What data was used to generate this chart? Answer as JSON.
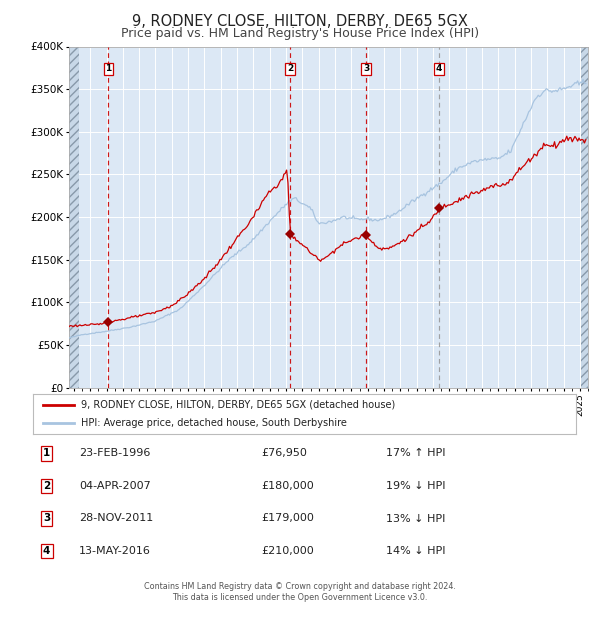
{
  "title": "9, RODNEY CLOSE, HILTON, DERBY, DE65 5GX",
  "subtitle": "Price paid vs. HM Land Registry's House Price Index (HPI)",
  "title_fontsize": 10.5,
  "subtitle_fontsize": 9,
  "ylabel_ticks": [
    "£0",
    "£50K",
    "£100K",
    "£150K",
    "£200K",
    "£250K",
    "£300K",
    "£350K",
    "£400K"
  ],
  "ytick_values": [
    0,
    50000,
    100000,
    150000,
    200000,
    250000,
    300000,
    350000,
    400000
  ],
  "ylim": [
    0,
    400000
  ],
  "xlim_start": 1993.7,
  "xlim_end": 2025.5,
  "xtick_years": [
    1994,
    1995,
    1996,
    1997,
    1998,
    1999,
    2000,
    2001,
    2002,
    2003,
    2004,
    2005,
    2006,
    2007,
    2008,
    2009,
    2010,
    2011,
    2012,
    2013,
    2014,
    2015,
    2016,
    2017,
    2018,
    2019,
    2020,
    2021,
    2022,
    2023,
    2024,
    2025
  ],
  "hpi_line_color": "#a8c4e0",
  "price_line_color": "#cc0000",
  "marker_color": "#990000",
  "bg_color": "#dce8f5",
  "grid_color": "#ffffff",
  "sales": [
    {
      "label": 1,
      "date_decimal": 1996.12,
      "price": 76950,
      "vline_color": "#cc0000"
    },
    {
      "label": 2,
      "date_decimal": 2007.25,
      "price": 180000,
      "vline_color": "#cc0000"
    },
    {
      "label": 3,
      "date_decimal": 2011.91,
      "price": 179000,
      "vline_color": "#cc0000"
    },
    {
      "label": 4,
      "date_decimal": 2016.37,
      "price": 210000,
      "vline_color": "#999999"
    }
  ],
  "table_rows": [
    {
      "num": 1,
      "date": "23-FEB-1996",
      "price": "£76,950",
      "hpi": "17% ↑ HPI"
    },
    {
      "num": 2,
      "date": "04-APR-2007",
      "price": "£180,000",
      "hpi": "19% ↓ HPI"
    },
    {
      "num": 3,
      "date": "28-NOV-2011",
      "price": "£179,000",
      "hpi": "13% ↓ HPI"
    },
    {
      "num": 4,
      "date": "13-MAY-2016",
      "price": "£210,000",
      "hpi": "14% ↓ HPI"
    }
  ],
  "legend_line1": "9, RODNEY CLOSE, HILTON, DERBY, DE65 5GX (detached house)",
  "legend_line2": "HPI: Average price, detached house, South Derbyshire",
  "footer1": "Contains HM Land Registry data © Crown copyright and database right 2024.",
  "footer2": "This data is licensed under the Open Government Licence v3.0.",
  "hpi_anchors": [
    [
      1993.7,
      58000
    ],
    [
      1994.5,
      62000
    ],
    [
      1996.0,
      66000
    ],
    [
      1997.5,
      71000
    ],
    [
      1999.0,
      78000
    ],
    [
      2000.5,
      92000
    ],
    [
      2002.0,
      120000
    ],
    [
      2003.5,
      150000
    ],
    [
      2004.8,
      170000
    ],
    [
      2006.0,
      195000
    ],
    [
      2007.0,
      215000
    ],
    [
      2007.5,
      222000
    ],
    [
      2008.5,
      210000
    ],
    [
      2009.0,
      192000
    ],
    [
      2009.8,
      195000
    ],
    [
      2010.5,
      200000
    ],
    [
      2011.0,
      198000
    ],
    [
      2011.5,
      197000
    ],
    [
      2012.0,
      198000
    ],
    [
      2012.5,
      196000
    ],
    [
      2013.0,
      198000
    ],
    [
      2013.8,
      205000
    ],
    [
      2014.5,
      215000
    ],
    [
      2015.5,
      228000
    ],
    [
      2016.5,
      240000
    ],
    [
      2017.5,
      257000
    ],
    [
      2018.5,
      265000
    ],
    [
      2019.5,
      268000
    ],
    [
      2020.0,
      268000
    ],
    [
      2020.8,
      278000
    ],
    [
      2021.5,
      308000
    ],
    [
      2022.3,
      340000
    ],
    [
      2022.8,
      348000
    ],
    [
      2023.5,
      348000
    ],
    [
      2024.0,
      350000
    ],
    [
      2024.5,
      354000
    ],
    [
      2025.3,
      358000
    ]
  ],
  "price_anchors": [
    [
      1993.7,
      72000
    ],
    [
      1994.5,
      73000
    ],
    [
      1995.5,
      74000
    ],
    [
      1996.12,
      76950
    ],
    [
      1997.0,
      80000
    ],
    [
      1998.0,
      84000
    ],
    [
      1999.0,
      88000
    ],
    [
      2000.0,
      96000
    ],
    [
      2001.0,
      110000
    ],
    [
      2002.0,
      128000
    ],
    [
      2003.0,
      150000
    ],
    [
      2004.0,
      175000
    ],
    [
      2005.0,
      200000
    ],
    [
      2005.8,
      225000
    ],
    [
      2006.3,
      235000
    ],
    [
      2006.8,
      245000
    ],
    [
      2007.08,
      257000
    ],
    [
      2007.25,
      180000
    ],
    [
      2007.5,
      175000
    ],
    [
      2008.0,
      168000
    ],
    [
      2008.5,
      158000
    ],
    [
      2009.0,
      150000
    ],
    [
      2009.5,
      153000
    ],
    [
      2010.0,
      162000
    ],
    [
      2010.5,
      168000
    ],
    [
      2011.0,
      173000
    ],
    [
      2011.91,
      179000
    ],
    [
      2012.3,
      170000
    ],
    [
      2012.8,
      163000
    ],
    [
      2013.3,
      163000
    ],
    [
      2013.8,
      168000
    ],
    [
      2014.3,
      174000
    ],
    [
      2014.8,
      180000
    ],
    [
      2015.3,
      188000
    ],
    [
      2015.8,
      194000
    ],
    [
      2016.37,
      210000
    ],
    [
      2016.8,
      214000
    ],
    [
      2017.3,
      218000
    ],
    [
      2017.8,
      222000
    ],
    [
      2018.3,
      226000
    ],
    [
      2018.8,
      229000
    ],
    [
      2019.3,
      233000
    ],
    [
      2019.8,
      237000
    ],
    [
      2020.2,
      237000
    ],
    [
      2020.7,
      243000
    ],
    [
      2021.2,
      253000
    ],
    [
      2021.7,
      263000
    ],
    [
      2022.2,
      272000
    ],
    [
      2022.7,
      282000
    ],
    [
      2023.0,
      286000
    ],
    [
      2023.5,
      284000
    ],
    [
      2024.0,
      290000
    ],
    [
      2024.5,
      293000
    ],
    [
      2025.0,
      291000
    ],
    [
      2025.3,
      289000
    ]
  ]
}
